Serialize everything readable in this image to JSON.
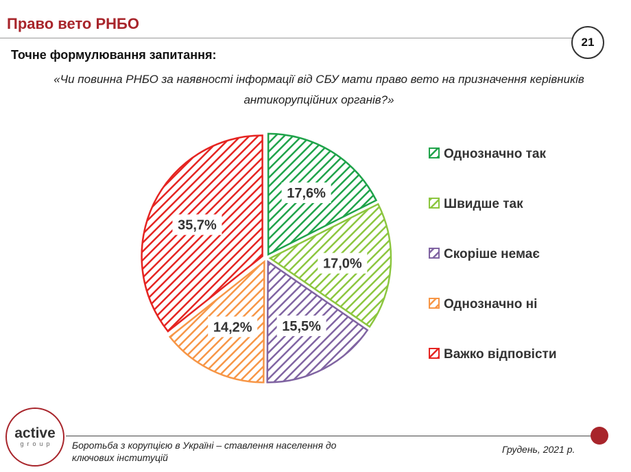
{
  "header": {
    "title": "Право вето РНБО",
    "page_number": "21",
    "question_label": "Точне формулювання запитання:",
    "question_text": "«Чи повинна РНБО за наявності інформації від СБУ мати право вето на призначення керівників антикорупційних органів?»"
  },
  "chart_data": {
    "type": "pie",
    "slices": [
      {
        "label": "Однозначно так",
        "value": 17.6,
        "display": "17,6%",
        "color": "#1fa34a"
      },
      {
        "label": "Швидше так",
        "value": 17.0,
        "display": "17,0%",
        "color": "#8cc63f"
      },
      {
        "label": "Скоріше немає",
        "value": 15.5,
        "display": "15,5%",
        "color": "#8064a2"
      },
      {
        "label": "Однозначно ні",
        "value": 14.2,
        "display": "14,2%",
        "color": "#f79646"
      },
      {
        "label": "Важко відповісти",
        "value": 35.7,
        "display": "35,7%",
        "color": "#e52421"
      }
    ],
    "legend_position": "right",
    "fill_pattern": "diagonal-hatch"
  },
  "footer": {
    "logo_main": "active",
    "logo_sub": "group",
    "left_text": "Боротьба з корупцією в Україні – ставлення населення до ключових інституцій",
    "right_text": "Грудень, 2021 р.",
    "accent_color": "#a8252b"
  }
}
